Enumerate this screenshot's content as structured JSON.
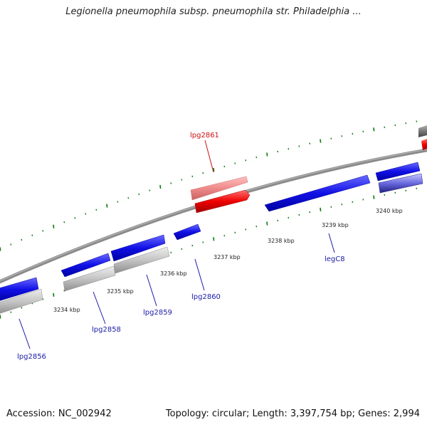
{
  "title": "Legionella pneumophila subsp. pneumophila str. Philadelphia ...",
  "footer": {
    "accession": "Accession: NC_002942",
    "summary": "Topology: circular; Length: 3,397,754 bp; Genes: 2,994"
  },
  "colors": {
    "backbone": "#8a8a8a",
    "gene_blue": "#1010e6",
    "gene_red": "#ee0000",
    "gene_pink": "#f08a8a",
    "gene_gray": "#bdbdbd",
    "tick_green": "#0a7a0a",
    "label_blue": "#1a1aa8",
    "label_red": "#cc1010"
  },
  "scale": {
    "unit": "kbp",
    "ticks": [
      {
        "value": 3234,
        "label": "3234 kbp"
      },
      {
        "value": 3235,
        "label": "3235 kbp"
      },
      {
        "value": 3236,
        "label": "3236 kbp"
      },
      {
        "value": 3237,
        "label": "3237 kbp"
      },
      {
        "value": 3238,
        "label": "3238 kbp"
      },
      {
        "value": 3239,
        "label": "3239 kbp"
      },
      {
        "value": 3240,
        "label": "3240 kbp"
      }
    ]
  },
  "gene_labels": [
    {
      "text": "lpg2856",
      "color": "blue"
    },
    {
      "text": "lpg2858",
      "color": "blue"
    },
    {
      "text": "lpg2859",
      "color": "blue"
    },
    {
      "text": "lpg2860",
      "color": "blue"
    },
    {
      "text": "legC8",
      "color": "blue"
    },
    {
      "text": "lpg2861",
      "color": "red"
    }
  ]
}
